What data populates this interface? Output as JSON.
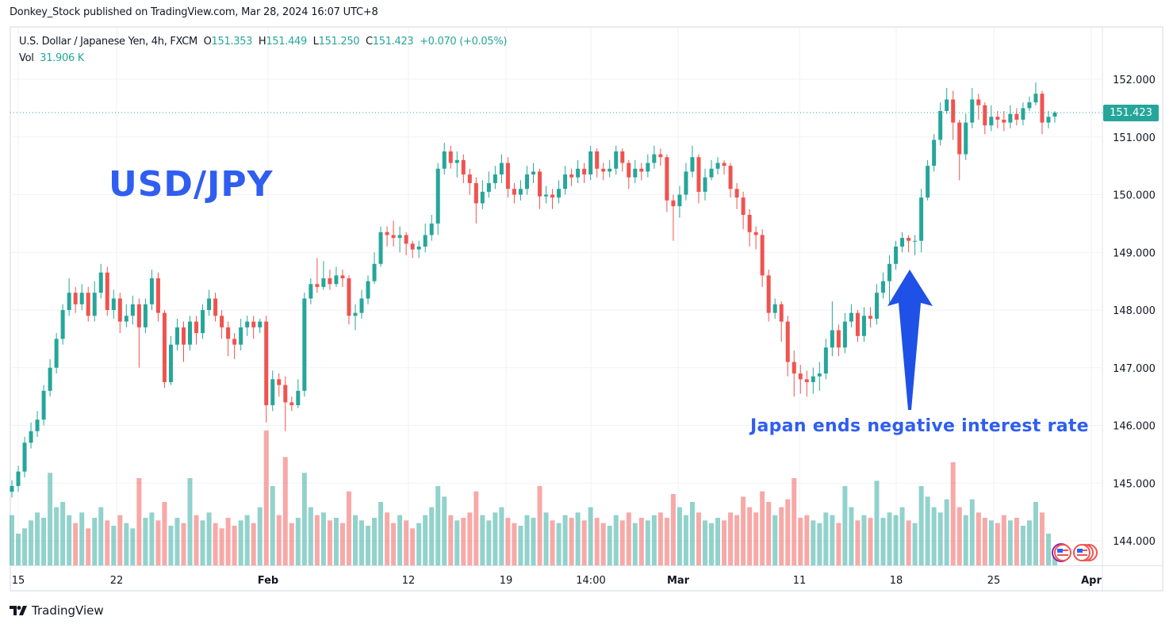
{
  "header": {
    "published": "Donkey_Stock published on TradingView.com, Mar 28, 2024 16:07 UTC+8"
  },
  "legend": {
    "symbol": "U.S. Dollar / Japanese Yen, 4h, FXCM",
    "o_label": "O",
    "o": "151.353",
    "h_label": "H",
    "h": "151.449",
    "l_label": "L",
    "l": "151.250",
    "c_label": "C",
    "c": "151.423",
    "change": "+0.070 (+0.05%)",
    "vol_label": "Vol",
    "vol": "31.906 K"
  },
  "annotations": {
    "title": "USD/JPY",
    "note": "Japan ends negative interest rate",
    "arrow_color": "#1f51e6"
  },
  "footer": {
    "logo": "TradingView"
  },
  "chart_data": {
    "type": "candlestick",
    "symbol": "USD/JPY",
    "interval": "4h",
    "colors": {
      "up": "#26a69a",
      "down": "#ef5350",
      "annotation": "#2f5ef0"
    },
    "ylim": [
      144,
      152
    ],
    "y_ticks": [
      "144.000",
      "145.000",
      "146.000",
      "147.000",
      "148.000",
      "149.000",
      "150.000",
      "151.000",
      "152.000"
    ],
    "x_ticks": [
      "15",
      "22",
      "Feb",
      "12",
      "19",
      "14:00",
      "Mar",
      "11",
      "18",
      "25",
      "Apr"
    ],
    "current_price": "151.423",
    "grid": true,
    "candles": {
      "open": [
        144.85,
        144.95,
        145.2,
        145.7,
        145.9,
        146.1,
        146.6,
        147.0,
        147.5,
        148.0,
        148.3,
        148.1,
        148.3,
        147.9,
        148.3,
        148.65,
        148.0,
        148.2,
        147.8,
        147.9,
        148.1,
        147.7,
        148.1,
        148.55,
        147.95,
        146.75,
        147.4,
        147.7,
        147.4,
        147.8,
        147.6,
        148.0,
        148.2,
        147.9,
        147.7,
        147.5,
        147.4,
        147.7,
        147.8,
        147.7,
        147.8,
        146.35,
        146.8,
        146.7,
        146.4,
        146.35,
        146.6,
        148.2,
        148.45,
        148.4,
        148.55,
        148.45,
        148.6,
        148.55,
        147.9,
        147.95,
        148.2,
        148.5,
        148.8,
        149.35,
        149.3,
        149.25,
        149.3,
        149.15,
        149.05,
        149.1,
        149.3,
        149.5,
        150.45,
        150.75,
        150.55,
        150.6,
        150.35,
        150.2,
        149.85,
        150.05,
        150.2,
        150.35,
        150.55,
        150.1,
        150.0,
        150.1,
        150.35,
        150.4,
        149.97,
        150.0,
        149.95,
        150.1,
        150.35,
        150.3,
        150.45,
        150.35,
        150.75,
        150.45,
        150.4,
        150.45,
        150.75,
        150.55,
        150.3,
        150.45,
        150.4,
        150.55,
        150.7,
        150.65,
        149.9,
        149.8,
        150.0,
        150.4,
        150.65,
        150.05,
        150.3,
        150.45,
        150.55,
        150.5,
        150.1,
        149.95,
        149.65,
        149.35,
        149.3,
        148.6,
        147.95,
        148.1,
        147.8,
        147.1,
        146.9,
        146.8,
        146.75,
        146.85,
        146.9,
        147.35,
        147.65,
        147.35,
        147.8,
        147.95,
        147.55,
        147.9,
        147.85,
        148.3,
        148.5,
        148.8,
        149.1,
        149.25,
        149.2,
        149.2,
        149.95,
        150.5,
        150.95,
        151.45,
        151.65,
        151.25,
        150.7,
        151.25,
        151.65,
        151.55,
        151.2,
        151.35,
        151.3,
        151.25,
        151.4,
        151.3,
        151.5,
        151.6,
        151.75,
        151.25,
        151.353
      ],
      "high": [
        145.05,
        145.3,
        145.8,
        146.05,
        146.25,
        146.7,
        147.15,
        147.6,
        148.1,
        148.55,
        148.4,
        148.45,
        148.4,
        148.5,
        148.8,
        148.75,
        148.35,
        148.3,
        148.1,
        148.25,
        148.2,
        148.2,
        148.7,
        148.65,
        148.0,
        147.55,
        147.85,
        147.8,
        147.9,
        147.9,
        148.1,
        148.35,
        148.3,
        148.0,
        147.8,
        147.6,
        147.85,
        147.9,
        147.9,
        147.85,
        147.9,
        146.95,
        146.9,
        146.85,
        146.5,
        146.8,
        148.3,
        148.55,
        148.9,
        148.85,
        148.7,
        148.75,
        148.7,
        148.6,
        148.1,
        148.35,
        148.6,
        149.0,
        149.45,
        149.45,
        149.55,
        149.45,
        149.35,
        149.2,
        149.2,
        149.5,
        149.65,
        150.55,
        150.9,
        150.85,
        150.75,
        150.7,
        150.45,
        150.3,
        150.25,
        150.4,
        150.5,
        150.7,
        150.65,
        150.2,
        150.25,
        150.5,
        150.55,
        150.45,
        150.15,
        150.1,
        150.25,
        150.5,
        150.45,
        150.6,
        150.55,
        150.85,
        150.8,
        150.55,
        150.6,
        150.85,
        150.8,
        150.6,
        150.6,
        150.55,
        150.7,
        150.85,
        150.8,
        150.7,
        150.0,
        150.15,
        150.55,
        150.85,
        150.7,
        150.45,
        150.6,
        150.65,
        150.6,
        150.55,
        150.2,
        150.05,
        149.75,
        149.45,
        149.4,
        148.7,
        148.2,
        148.15,
        147.9,
        147.3,
        147.05,
        146.95,
        147.0,
        147.1,
        147.5,
        148.15,
        147.75,
        147.95,
        148.1,
        148.0,
        148.05,
        148.05,
        148.45,
        148.65,
        148.95,
        149.2,
        149.35,
        149.3,
        149.3,
        150.1,
        150.6,
        151.05,
        151.6,
        151.85,
        151.8,
        151.3,
        151.4,
        151.85,
        151.75,
        151.6,
        151.55,
        151.45,
        151.45,
        151.55,
        151.5,
        151.6,
        151.7,
        151.95,
        151.8,
        151.45,
        151.449
      ],
      "low": [
        144.75,
        144.85,
        145.1,
        145.6,
        145.8,
        146.0,
        146.5,
        146.9,
        147.4,
        147.9,
        147.95,
        148.0,
        147.8,
        147.8,
        148.2,
        147.9,
        147.85,
        147.6,
        147.7,
        147.75,
        147.0,
        147.6,
        148.0,
        147.8,
        146.65,
        146.7,
        147.3,
        147.1,
        147.3,
        147.4,
        147.5,
        147.9,
        147.8,
        147.5,
        147.2,
        147.15,
        147.3,
        147.55,
        147.5,
        147.6,
        146.05,
        146.25,
        146.5,
        145.9,
        146.25,
        146.3,
        146.5,
        148.1,
        148.3,
        148.35,
        148.35,
        148.4,
        148.4,
        147.75,
        147.65,
        147.85,
        148.1,
        148.45,
        148.75,
        149.1,
        149.1,
        149.0,
        148.95,
        148.9,
        148.9,
        149.0,
        149.2,
        149.3,
        150.35,
        150.45,
        150.3,
        150.2,
        150.0,
        149.5,
        149.75,
        149.95,
        150.1,
        150.2,
        149.95,
        149.85,
        149.9,
        150.0,
        150.2,
        149.75,
        149.85,
        149.75,
        149.85,
        150.0,
        150.15,
        150.2,
        150.2,
        150.25,
        150.3,
        150.25,
        150.3,
        150.35,
        150.4,
        150.1,
        150.2,
        150.25,
        150.3,
        150.45,
        150.5,
        149.7,
        149.2,
        149.6,
        149.9,
        150.3,
        149.85,
        149.9,
        150.25,
        150.35,
        150.35,
        149.95,
        149.75,
        149.4,
        149.1,
        149.05,
        148.4,
        147.8,
        147.85,
        147.45,
        146.85,
        146.5,
        146.55,
        146.5,
        146.55,
        146.6,
        146.8,
        147.2,
        147.2,
        147.25,
        147.7,
        147.45,
        147.45,
        147.7,
        147.75,
        148.2,
        148.1,
        148.7,
        149.0,
        149.0,
        148.95,
        149.0,
        149.9,
        150.4,
        150.85,
        151.4,
        150.95,
        150.25,
        150.6,
        151.15,
        151.3,
        151.05,
        151.1,
        151.15,
        151.1,
        151.15,
        151.2,
        151.2,
        151.45,
        151.55,
        151.05,
        151.15,
        151.25
      ],
      "close": [
        144.95,
        145.2,
        145.7,
        145.9,
        146.1,
        146.6,
        147.0,
        147.5,
        148.0,
        148.3,
        148.1,
        148.3,
        147.9,
        148.3,
        148.65,
        148.0,
        148.2,
        147.8,
        147.9,
        148.1,
        147.7,
        148.1,
        148.55,
        147.95,
        146.75,
        147.4,
        147.7,
        147.4,
        147.8,
        147.6,
        148.0,
        148.2,
        147.9,
        147.7,
        147.5,
        147.4,
        147.7,
        147.8,
        147.7,
        147.8,
        146.35,
        146.8,
        146.7,
        146.4,
        146.35,
        146.6,
        148.2,
        148.45,
        148.4,
        148.55,
        148.45,
        148.6,
        148.55,
        147.9,
        147.95,
        148.2,
        148.5,
        148.8,
        149.35,
        149.3,
        149.25,
        149.3,
        149.15,
        149.05,
        149.1,
        149.3,
        149.5,
        150.45,
        150.75,
        150.55,
        150.6,
        150.35,
        150.2,
        149.85,
        150.05,
        150.2,
        150.35,
        150.55,
        150.1,
        150.0,
        150.1,
        150.35,
        150.4,
        149.97,
        150.0,
        149.95,
        150.1,
        150.35,
        150.3,
        150.45,
        150.35,
        150.75,
        150.45,
        150.4,
        150.45,
        150.75,
        150.55,
        150.3,
        150.45,
        150.4,
        150.55,
        150.7,
        150.65,
        149.9,
        149.8,
        150.0,
        150.4,
        150.65,
        150.05,
        150.3,
        150.45,
        150.55,
        150.5,
        150.1,
        149.95,
        149.65,
        149.35,
        149.3,
        148.6,
        147.95,
        148.1,
        147.8,
        147.1,
        146.9,
        146.8,
        146.75,
        146.85,
        146.9,
        147.35,
        147.65,
        147.35,
        147.8,
        147.95,
        147.55,
        147.9,
        147.85,
        148.3,
        148.5,
        148.8,
        149.1,
        149.25,
        149.2,
        149.2,
        149.95,
        150.5,
        150.95,
        151.45,
        151.65,
        151.25,
        150.7,
        151.25,
        151.65,
        151.55,
        151.2,
        151.35,
        151.3,
        151.25,
        151.4,
        151.3,
        151.5,
        151.6,
        151.75,
        151.25,
        151.35,
        151.423
      ]
    },
    "volume_k": [
      95,
      60,
      70,
      85,
      100,
      90,
      175,
      110,
      120,
      95,
      80,
      100,
      70,
      90,
      110,
      85,
      75,
      95,
      80,
      70,
      165,
      90,
      100,
      85,
      120,
      75,
      90,
      80,
      165,
      95,
      85,
      100,
      80,
      70,
      90,
      75,
      85,
      95,
      80,
      110,
      255,
      150,
      95,
      205,
      80,
      90,
      175,
      110,
      95,
      100,
      85,
      90,
      80,
      140,
      95,
      85,
      75,
      90,
      120,
      100,
      80,
      95,
      85,
      70,
      80,
      95,
      110,
      150,
      130,
      95,
      85,
      90,
      100,
      140,
      95,
      85,
      100,
      110,
      90,
      80,
      75,
      95,
      90,
      150,
      100,
      85,
      80,
      95,
      90,
      100,
      85,
      110,
      90,
      80,
      75,
      95,
      85,
      100,
      80,
      90,
      85,
      95,
      100,
      90,
      135,
      110,
      95,
      120,
      100,
      85,
      80,
      90,
      85,
      100,
      95,
      130,
      110,
      100,
      140,
      120,
      95,
      110,
      125,
      165,
      90,
      95,
      85,
      80,
      100,
      95,
      80,
      150,
      110,
      85,
      95,
      90,
      160,
      90,
      100,
      95,
      110,
      85,
      80,
      150,
      130,
      110,
      100,
      125,
      195,
      110,
      95,
      125,
      100,
      90,
      85,
      80,
      95,
      85,
      90,
      75,
      85,
      120,
      100,
      60,
      31.906
    ]
  }
}
